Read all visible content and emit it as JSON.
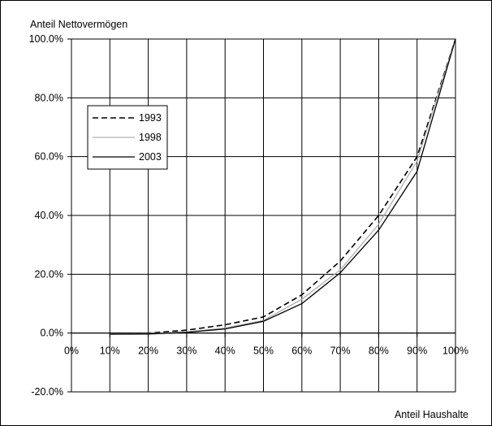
{
  "chart_data": {
    "type": "line",
    "title": "",
    "ylabel": "Anteil Nettovermögen",
    "xlabel": "Anteil Haushalte",
    "x": [
      0.1,
      0.2,
      0.3,
      0.4,
      0.5,
      0.6,
      0.7,
      0.8,
      0.9,
      1.0
    ],
    "xlim": [
      0,
      1.0
    ],
    "ylim": [
      -0.2,
      1.0
    ],
    "x_ticks": [
      "0%",
      "10%",
      "20%",
      "30%",
      "40%",
      "50%",
      "60%",
      "70%",
      "80%",
      "90%",
      "100%"
    ],
    "y_ticks": [
      "-20.0%",
      "0.0%",
      "20.0%",
      "40.0%",
      "60.0%",
      "80.0%",
      "100.0%"
    ],
    "grid": true,
    "legend_position": "left",
    "series": [
      {
        "name": "1993",
        "style": "dashed",
        "color": "#000000",
        "values": [
          -0.002,
          0.0,
          0.01,
          0.028,
          0.055,
          0.13,
          0.245,
          0.4,
          0.6,
          1.0
        ]
      },
      {
        "name": "1998",
        "style": "solid",
        "color": "#b0b0b0",
        "values": [
          -0.003,
          -0.002,
          0.004,
          0.017,
          0.043,
          0.115,
          0.215,
          0.37,
          0.585,
          1.0
        ]
      },
      {
        "name": "2003",
        "style": "solid",
        "color": "#000000",
        "values": [
          -0.004,
          -0.003,
          0.002,
          0.014,
          0.04,
          0.1,
          0.205,
          0.35,
          0.55,
          1.0
        ]
      }
    ]
  }
}
